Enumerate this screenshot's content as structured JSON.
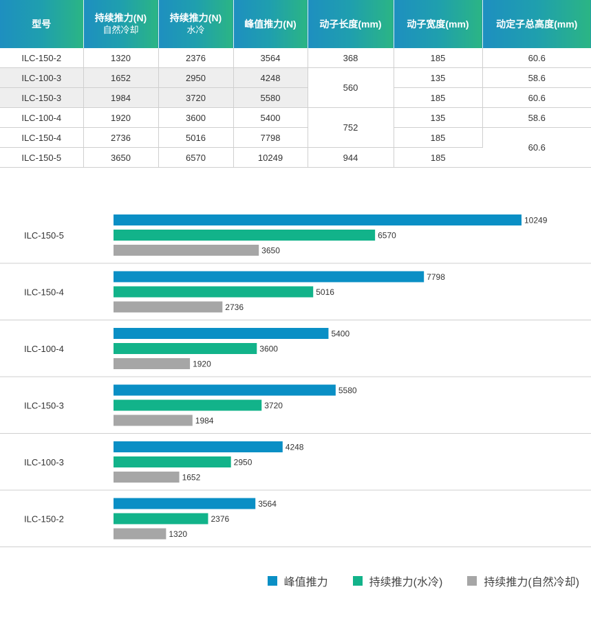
{
  "table": {
    "headers": [
      {
        "main": "型号",
        "sub": ""
      },
      {
        "main": "持续推力(N)",
        "sub": "自然冷却"
      },
      {
        "main": "持续推力(N)",
        "sub": "水冷"
      },
      {
        "main": "峰值推力(N)",
        "sub": ""
      },
      {
        "main": "动子长度(mm)",
        "sub": ""
      },
      {
        "main": "动子宽度(mm)",
        "sub": ""
      },
      {
        "main": "动定子总高度(mm)",
        "sub": ""
      }
    ],
    "rows": [
      {
        "model": "ILC-150-2",
        "natural": "1320",
        "water": "2376",
        "peak": "3564",
        "length": "368",
        "width": "185",
        "height": "60.6"
      },
      {
        "model": "ILC-100-3",
        "natural": "1652",
        "water": "2950",
        "peak": "4248",
        "length": "560",
        "width": "135",
        "height": "58.6"
      },
      {
        "model": "ILC-150-3",
        "natural": "1984",
        "water": "3720",
        "peak": "5580",
        "length": "",
        "width": "185",
        "height": "60.6"
      },
      {
        "model": "ILC-100-4",
        "natural": "1920",
        "water": "3600",
        "peak": "5400",
        "length": "752",
        "width": "135",
        "height": "58.6"
      },
      {
        "model": "ILC-150-4",
        "natural": "2736",
        "water": "5016",
        "peak": "7798",
        "length": "",
        "width": "185",
        "height": "60.6"
      },
      {
        "model": "ILC-150-5",
        "natural": "3650",
        "water": "6570",
        "peak": "10249",
        "length": "944",
        "width": "185",
        "height": ""
      }
    ]
  },
  "chart_data": {
    "type": "bar",
    "orientation": "horizontal",
    "categories": [
      "ILC-150-5",
      "ILC-150-4",
      "ILC-100-4",
      "ILC-150-3",
      "ILC-100-3",
      "ILC-150-2"
    ],
    "series": [
      {
        "name": "峰值推力",
        "color": "#0a8fc5",
        "values": [
          10249,
          7798,
          5400,
          5580,
          4248,
          3564
        ]
      },
      {
        "name": "持续推力(水冷)",
        "color": "#12b38a",
        "values": [
          6570,
          5016,
          3600,
          3720,
          2950,
          2376
        ]
      },
      {
        "name": "持续推力(自然冷却)",
        "color": "#a6a6a6",
        "values": [
          3650,
          2736,
          1920,
          1984,
          1652,
          1320
        ]
      }
    ],
    "xlim": [
      0,
      10249
    ],
    "grid": false,
    "legend_position": "bottom-right",
    "data_labels": true
  }
}
